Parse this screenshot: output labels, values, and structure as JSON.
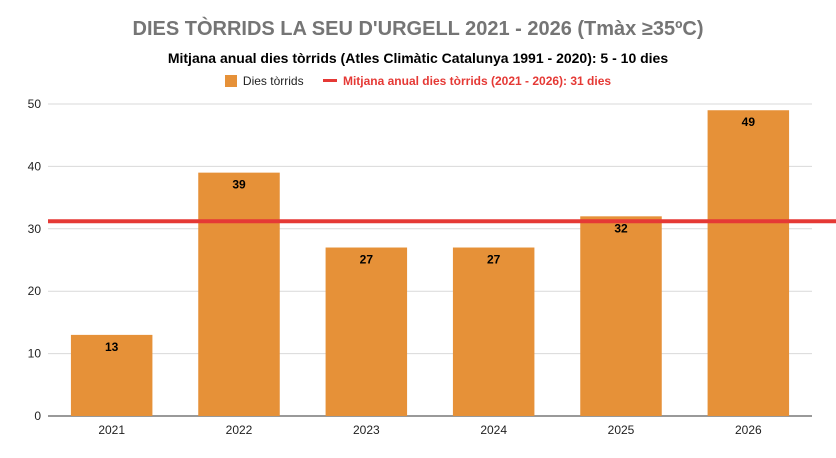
{
  "chart_data": {
    "type": "bar",
    "title": "DIES TÒRRIDS LA SEU D'URGELL 2021 - 2026 (Tmàx ≥35ºC)",
    "subtitle": "Mitjana anual dies tòrrids (Atles Climàtic Catalunya 1991 - 2020): 5 - 10 dies",
    "categories": [
      "2021",
      "2022",
      "2023",
      "2024",
      "2025",
      "2026"
    ],
    "series": [
      {
        "name": "Dies tòrrids",
        "values": [
          13,
          39,
          27,
          27,
          32,
          49
        ],
        "color": "#e69138"
      }
    ],
    "reference_line": {
      "name": "Mitjana anual dies tòrrids (2021 - 2026): 31 dies",
      "value": 31.2,
      "color": "#e53935"
    },
    "ylim": [
      0,
      50
    ],
    "yticks": [
      "0",
      "10",
      "20",
      "30",
      "40",
      "50"
    ],
    "grid": true,
    "legend_position": "top"
  }
}
